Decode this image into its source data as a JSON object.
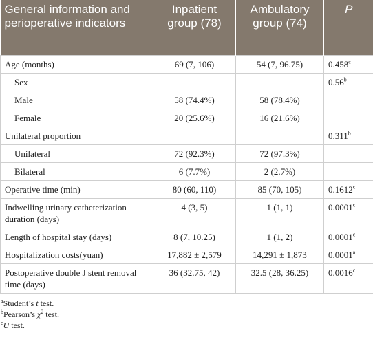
{
  "table": {
    "header": [
      "General information and perioperative indicators",
      "Inpatient group (78)",
      "Ambulatory group (74)",
      "P"
    ],
    "rows": [
      {
        "label": "Age (months)",
        "inpatient": "69 (7, 106)",
        "ambulatory": "54 (7, 96.75)",
        "p": "0.458",
        "p_note": "c"
      },
      {
        "label": "Sex",
        "level": 1,
        "p": "0.56",
        "p_note": "b"
      },
      {
        "label": "Male",
        "level": 1,
        "inpatient": "58 (74.4%)",
        "ambulatory": "58 (78.4%)"
      },
      {
        "label": "Female",
        "level": 1,
        "inpatient": "20 (25.6%)",
        "ambulatory": "16 (21.6%)"
      },
      {
        "label": "Unilateral proportion",
        "p": "0.311",
        "p_note": "b"
      },
      {
        "label": "Unilateral",
        "level": 1,
        "inpatient": "72 (92.3%)",
        "ambulatory": "72 (97.3%)"
      },
      {
        "label": "Bilateral",
        "level": 1,
        "inpatient": "6 (7.7%)",
        "ambulatory": "2 (2.7%)"
      },
      {
        "label": "Operative time (min)",
        "inpatient": "80 (60, 110)",
        "ambulatory": "85 (70, 105)",
        "p": "0.1612",
        "p_note": "c"
      },
      {
        "label": "Indwelling urinary catheterization duration (days)",
        "inpatient": "4 (3, 5)",
        "ambulatory": "1 (1, 1)",
        "p": "0.0001",
        "p_note": "c"
      },
      {
        "label": "Length of hospital stay (days)",
        "inpatient": "8 (7, 10.25)",
        "ambulatory": "1 (1, 2)",
        "p": "0.0001",
        "p_note": "c"
      },
      {
        "label": "Hospitalization costs(yuan)",
        "inpatient": "17,882 ± 2,579",
        "ambulatory": "14,291 ± 1,873",
        "p": "0.0001",
        "p_note": "a"
      },
      {
        "label": "Postoperative double J stent removal time (days)",
        "inpatient": "36 (32.75, 42)",
        "ambulatory": "32.5 (28, 36.25)",
        "p": "0.0016",
        "p_note": "c"
      }
    ]
  },
  "footnotes": [
    {
      "mark": "a",
      "pre": "Student’s ",
      "em": "t",
      "post": " test."
    },
    {
      "mark": "b",
      "pre": "Pearson’s ",
      "em": "χ",
      "sup": "2",
      "post": " test."
    },
    {
      "mark": "c",
      "em": "U",
      "post": " test."
    }
  ]
}
